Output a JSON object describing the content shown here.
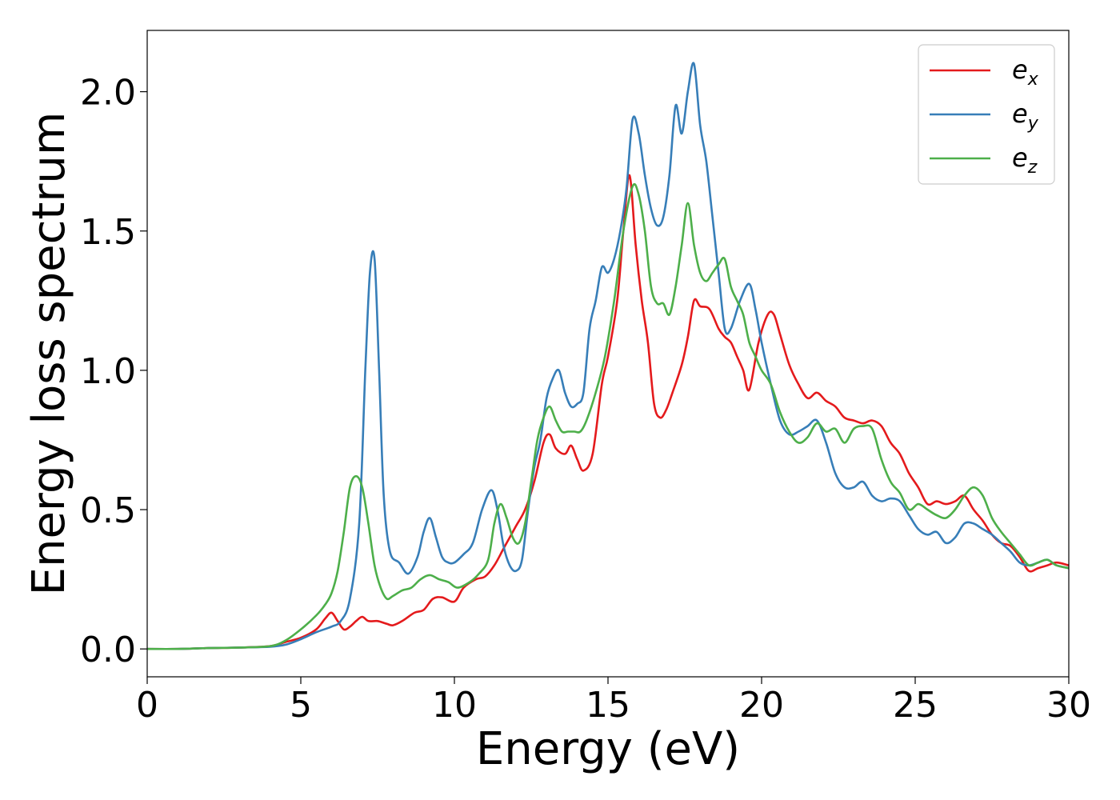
{
  "chart_data": {
    "type": "line",
    "xlabel": "Energy (eV)",
    "ylabel": "Energy loss spectrum",
    "xlim": [
      0,
      30
    ],
    "ylim": [
      -0.1,
      2.22
    ],
    "xticks": [
      0,
      5,
      10,
      15,
      20,
      25,
      30
    ],
    "yticks": [
      0.0,
      0.5,
      1.0,
      1.5,
      2.0
    ],
    "xtick_labels": [
      "0",
      "5",
      "10",
      "15",
      "20",
      "25",
      "30"
    ],
    "ytick_labels": [
      "0.0",
      "0.5",
      "1.0",
      "1.5",
      "2.0"
    ],
    "grid": false,
    "legend_position": "top-right",
    "series": [
      {
        "name": "e_x",
        "label_base": "e",
        "label_sub": "x",
        "color": "#e41a1c",
        "x": [
          0,
          1,
          2,
          3,
          4,
          4.5,
          5,
          5.5,
          5.8,
          6.0,
          6.2,
          6.4,
          6.6,
          6.8,
          7.0,
          7.2,
          7.5,
          7.8,
          8.0,
          8.3,
          8.7,
          9.0,
          9.3,
          9.6,
          10.0,
          10.3,
          10.7,
          11.0,
          11.3,
          11.6,
          12.0,
          12.3,
          12.6,
          12.9,
          13.1,
          13.3,
          13.6,
          13.8,
          14.0,
          14.2,
          14.5,
          14.8,
          15.0,
          15.3,
          15.5,
          15.7,
          15.9,
          16.1,
          16.3,
          16.5,
          16.7,
          16.9,
          17.1,
          17.4,
          17.6,
          17.8,
          18.0,
          18.3,
          18.6,
          18.8,
          19.0,
          19.2,
          19.4,
          19.6,
          19.9,
          20.2,
          20.4,
          20.6,
          20.9,
          21.2,
          21.5,
          21.8,
          22.1,
          22.4,
          22.7,
          23.0,
          23.3,
          23.6,
          23.9,
          24.2,
          24.5,
          24.8,
          25.1,
          25.4,
          25.7,
          26.0,
          26.3,
          26.6,
          26.9,
          27.2,
          27.5,
          27.8,
          28.1,
          28.4,
          28.7,
          29.0,
          29.3,
          29.6,
          30.0
        ],
        "y": [
          0.0,
          0.0,
          0.003,
          0.005,
          0.01,
          0.025,
          0.04,
          0.07,
          0.11,
          0.13,
          0.1,
          0.07,
          0.08,
          0.1,
          0.115,
          0.1,
          0.1,
          0.09,
          0.085,
          0.1,
          0.13,
          0.14,
          0.18,
          0.185,
          0.17,
          0.22,
          0.25,
          0.26,
          0.3,
          0.36,
          0.44,
          0.5,
          0.6,
          0.74,
          0.77,
          0.72,
          0.7,
          0.73,
          0.68,
          0.64,
          0.7,
          0.95,
          1.05,
          1.25,
          1.5,
          1.7,
          1.45,
          1.25,
          1.1,
          0.88,
          0.83,
          0.86,
          0.92,
          1.02,
          1.12,
          1.25,
          1.23,
          1.22,
          1.15,
          1.12,
          1.1,
          1.05,
          1.0,
          0.93,
          1.1,
          1.2,
          1.2,
          1.13,
          1.02,
          0.95,
          0.9,
          0.92,
          0.89,
          0.87,
          0.83,
          0.82,
          0.81,
          0.82,
          0.8,
          0.74,
          0.7,
          0.63,
          0.58,
          0.52,
          0.53,
          0.52,
          0.53,
          0.55,
          0.5,
          0.46,
          0.41,
          0.38,
          0.37,
          0.33,
          0.28,
          0.29,
          0.3,
          0.31,
          0.3
        ]
      },
      {
        "name": "e_y",
        "label_base": "e",
        "label_sub": "y",
        "color": "#377eb8",
        "x": [
          0,
          1,
          2,
          3,
          4,
          4.5,
          5,
          5.5,
          6.0,
          6.3,
          6.6,
          6.9,
          7.1,
          7.25,
          7.4,
          7.55,
          7.7,
          7.9,
          8.2,
          8.5,
          8.8,
          9.0,
          9.2,
          9.4,
          9.6,
          9.8,
          10.0,
          10.3,
          10.6,
          10.9,
          11.2,
          11.4,
          11.6,
          11.8,
          12.0,
          12.2,
          12.4,
          12.6,
          12.8,
          13.0,
          13.2,
          13.4,
          13.6,
          13.8,
          14.0,
          14.2,
          14.4,
          14.6,
          14.8,
          15.0,
          15.2,
          15.4,
          15.6,
          15.8,
          16.0,
          16.2,
          16.4,
          16.6,
          16.8,
          17.0,
          17.2,
          17.4,
          17.6,
          17.8,
          18.0,
          18.2,
          18.4,
          18.6,
          18.8,
          19.0,
          19.3,
          19.6,
          19.8,
          20.0,
          20.3,
          20.6,
          20.9,
          21.2,
          21.5,
          21.8,
          22.1,
          22.4,
          22.7,
          23.0,
          23.3,
          23.6,
          23.9,
          24.2,
          24.5,
          24.8,
          25.1,
          25.4,
          25.7,
          26.0,
          26.3,
          26.6,
          26.9,
          27.2,
          27.5,
          27.8,
          28.1,
          28.4,
          28.7,
          29.0,
          29.3,
          29.6,
          30.0
        ],
        "y": [
          0.0,
          0.0,
          0.003,
          0.005,
          0.008,
          0.015,
          0.035,
          0.06,
          0.08,
          0.1,
          0.18,
          0.45,
          1.0,
          1.35,
          1.4,
          1.0,
          0.55,
          0.35,
          0.31,
          0.27,
          0.33,
          0.42,
          0.47,
          0.4,
          0.33,
          0.31,
          0.31,
          0.34,
          0.38,
          0.5,
          0.57,
          0.5,
          0.37,
          0.3,
          0.28,
          0.32,
          0.5,
          0.65,
          0.75,
          0.9,
          0.97,
          1.0,
          0.92,
          0.87,
          0.88,
          0.92,
          1.15,
          1.25,
          1.37,
          1.35,
          1.4,
          1.5,
          1.65,
          1.9,
          1.85,
          1.7,
          1.58,
          1.52,
          1.55,
          1.7,
          1.95,
          1.85,
          2.0,
          2.1,
          1.88,
          1.75,
          1.55,
          1.35,
          1.15,
          1.15,
          1.25,
          1.31,
          1.22,
          1.1,
          0.95,
          0.82,
          0.77,
          0.78,
          0.8,
          0.82,
          0.74,
          0.63,
          0.58,
          0.58,
          0.6,
          0.55,
          0.53,
          0.54,
          0.53,
          0.48,
          0.43,
          0.41,
          0.42,
          0.38,
          0.4,
          0.45,
          0.45,
          0.43,
          0.41,
          0.38,
          0.35,
          0.31,
          0.3,
          0.31,
          0.32,
          0.3,
          0.29
        ]
      },
      {
        "name": "e_z",
        "label_base": "e",
        "label_sub": "z",
        "color": "#4daf4a",
        "x": [
          0,
          1,
          2,
          3,
          4,
          4.5,
          5,
          5.5,
          5.8,
          6.0,
          6.2,
          6.4,
          6.6,
          6.8,
          7.0,
          7.2,
          7.4,
          7.6,
          7.8,
          8.0,
          8.3,
          8.6,
          8.9,
          9.2,
          9.5,
          9.8,
          10.1,
          10.5,
          10.8,
          11.1,
          11.3,
          11.5,
          11.7,
          11.9,
          12.1,
          12.3,
          12.5,
          12.7,
          12.9,
          13.1,
          13.3,
          13.5,
          13.7,
          13.9,
          14.1,
          14.3,
          14.6,
          14.9,
          15.2,
          15.5,
          15.8,
          16.0,
          16.2,
          16.4,
          16.6,
          16.8,
          17.0,
          17.2,
          17.4,
          17.6,
          17.8,
          18.0,
          18.2,
          18.4,
          18.6,
          18.8,
          19.0,
          19.2,
          19.4,
          19.6,
          19.8,
          20.0,
          20.3,
          20.6,
          20.9,
          21.2,
          21.5,
          21.8,
          22.1,
          22.4,
          22.7,
          23.0,
          23.3,
          23.6,
          23.9,
          24.2,
          24.5,
          24.8,
          25.1,
          25.4,
          25.7,
          26.0,
          26.3,
          26.6,
          26.9,
          27.2,
          27.5,
          27.8,
          28.1,
          28.4,
          28.7,
          29.0,
          29.3,
          29.6,
          30.0
        ],
        "y": [
          0.0,
          0.0,
          0.003,
          0.005,
          0.01,
          0.03,
          0.07,
          0.12,
          0.16,
          0.2,
          0.28,
          0.42,
          0.58,
          0.62,
          0.58,
          0.45,
          0.3,
          0.22,
          0.18,
          0.19,
          0.21,
          0.22,
          0.25,
          0.265,
          0.25,
          0.24,
          0.22,
          0.24,
          0.27,
          0.32,
          0.45,
          0.52,
          0.47,
          0.4,
          0.38,
          0.45,
          0.6,
          0.75,
          0.83,
          0.87,
          0.82,
          0.78,
          0.78,
          0.78,
          0.78,
          0.82,
          0.92,
          1.05,
          1.25,
          1.5,
          1.66,
          1.63,
          1.5,
          1.3,
          1.24,
          1.24,
          1.2,
          1.3,
          1.45,
          1.6,
          1.45,
          1.35,
          1.32,
          1.35,
          1.38,
          1.4,
          1.3,
          1.25,
          1.2,
          1.1,
          1.05,
          1.0,
          0.95,
          0.85,
          0.78,
          0.74,
          0.76,
          0.81,
          0.78,
          0.79,
          0.74,
          0.79,
          0.8,
          0.79,
          0.68,
          0.6,
          0.56,
          0.5,
          0.52,
          0.5,
          0.48,
          0.47,
          0.5,
          0.55,
          0.58,
          0.55,
          0.47,
          0.42,
          0.38,
          0.34,
          0.3,
          0.31,
          0.32,
          0.3,
          0.29
        ]
      }
    ]
  }
}
